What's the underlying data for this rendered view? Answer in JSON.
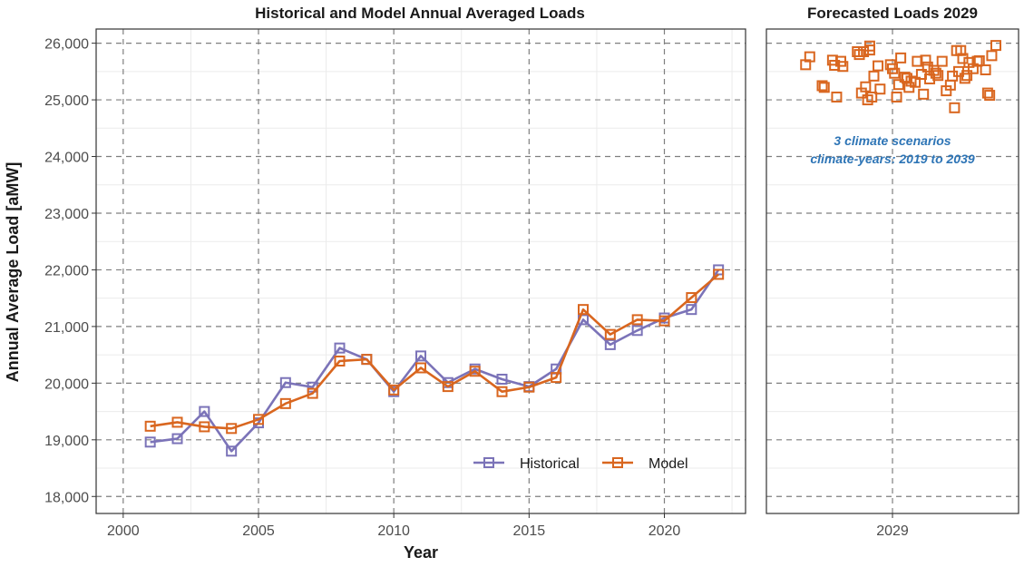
{
  "chart_data": [
    {
      "type": "line",
      "title": "Historical and Model Annual Averaged Loads",
      "xlabel": "Year",
      "ylabel": "Annual Average Load [aMW]",
      "xlim": [
        1999,
        2023
      ],
      "ylim": [
        17700,
        26250
      ],
      "x_ticks": [
        2000,
        2005,
        2010,
        2015,
        2020
      ],
      "x_tick_labels": [
        "2000",
        "2005",
        "2010",
        "2015",
        "2020"
      ],
      "y_ticks": [
        18000,
        19000,
        20000,
        21000,
        22000,
        23000,
        24000,
        25000,
        26000
      ],
      "y_tick_labels": [
        "18,000",
        "19,000",
        "20,000",
        "21,000",
        "22,000",
        "23,000",
        "24,000",
        "25,000",
        "26,000"
      ],
      "grid": true,
      "legend_position": "bottom-right",
      "x": [
        2001,
        2002,
        2003,
        2004,
        2005,
        2006,
        2007,
        2008,
        2009,
        2010,
        2011,
        2012,
        2013,
        2014,
        2015,
        2016,
        2017,
        2018,
        2019,
        2020,
        2021,
        2022
      ],
      "series": [
        {
          "name": "Historical",
          "color": "#7b73b8",
          "marker": "open-square",
          "values": [
            18960,
            19020,
            19500,
            18800,
            19300,
            20010,
            19930,
            20620,
            20420,
            19850,
            20480,
            20010,
            20250,
            20070,
            19940,
            20250,
            21120,
            20680,
            20930,
            21150,
            21300,
            22000
          ]
        },
        {
          "name": "Model",
          "color": "#d9661f",
          "marker": "open-square",
          "values": [
            19240,
            19310,
            19230,
            19200,
            19360,
            19640,
            19820,
            20390,
            20420,
            19880,
            20270,
            19940,
            20210,
            19850,
            19930,
            20100,
            21300,
            20860,
            21120,
            21100,
            21510,
            21920
          ]
        }
      ]
    },
    {
      "type": "scatter",
      "title": "Forecasted Loads 2029",
      "xlabel": "",
      "ylabel": "",
      "x_ticks": [
        "2029"
      ],
      "x_tick_labels": [
        "2029"
      ],
      "ylim": [
        17700,
        26250
      ],
      "grid": true,
      "color": "#d9661f",
      "marker": "open-square",
      "annotation": [
        "3 climate scenarios",
        "climate-years: 2019 to 2039"
      ],
      "annotation_color": "#2e75b6",
      "points": [
        [
          0.08,
          25620
        ],
        [
          0.1,
          25760
        ],
        [
          0.16,
          25250
        ],
        [
          0.17,
          25220
        ],
        [
          0.21,
          25700
        ],
        [
          0.22,
          25610
        ],
        [
          0.23,
          25050
        ],
        [
          0.25,
          25680
        ],
        [
          0.26,
          25590
        ],
        [
          0.33,
          25850
        ],
        [
          0.34,
          25800
        ],
        [
          0.35,
          25120
        ],
        [
          0.36,
          25850
        ],
        [
          0.37,
          25230
        ],
        [
          0.38,
          25000
        ],
        [
          0.39,
          25880
        ],
        [
          0.39,
          25950
        ],
        [
          0.4,
          25050
        ],
        [
          0.41,
          25420
        ],
        [
          0.43,
          25600
        ],
        [
          0.44,
          25190
        ],
        [
          0.49,
          25620
        ],
        [
          0.5,
          25550
        ],
        [
          0.51,
          25470
        ],
        [
          0.52,
          25050
        ],
        [
          0.53,
          25270
        ],
        [
          0.54,
          25740
        ],
        [
          0.56,
          25400
        ],
        [
          0.57,
          25380
        ],
        [
          0.58,
          25220
        ],
        [
          0.59,
          25330
        ],
        [
          0.61,
          25310
        ],
        [
          0.62,
          25680
        ],
        [
          0.64,
          25450
        ],
        [
          0.65,
          25100
        ],
        [
          0.66,
          25700
        ],
        [
          0.67,
          25580
        ],
        [
          0.68,
          25370
        ],
        [
          0.7,
          25520
        ],
        [
          0.71,
          25470
        ],
        [
          0.72,
          25430
        ],
        [
          0.74,
          25680
        ],
        [
          0.76,
          25160
        ],
        [
          0.78,
          25260
        ],
        [
          0.79,
          25420
        ],
        [
          0.8,
          24860
        ],
        [
          0.81,
          25870
        ],
        [
          0.82,
          25500
        ],
        [
          0.83,
          25870
        ],
        [
          0.84,
          25730
        ],
        [
          0.85,
          25380
        ],
        [
          0.86,
          25430
        ],
        [
          0.87,
          25660
        ],
        [
          0.89,
          25550
        ],
        [
          0.91,
          25680
        ],
        [
          0.92,
          25690
        ],
        [
          0.95,
          25530
        ],
        [
          0.96,
          25120
        ],
        [
          0.97,
          25080
        ],
        [
          0.98,
          25780
        ],
        [
          1.0,
          25960
        ]
      ]
    }
  ]
}
